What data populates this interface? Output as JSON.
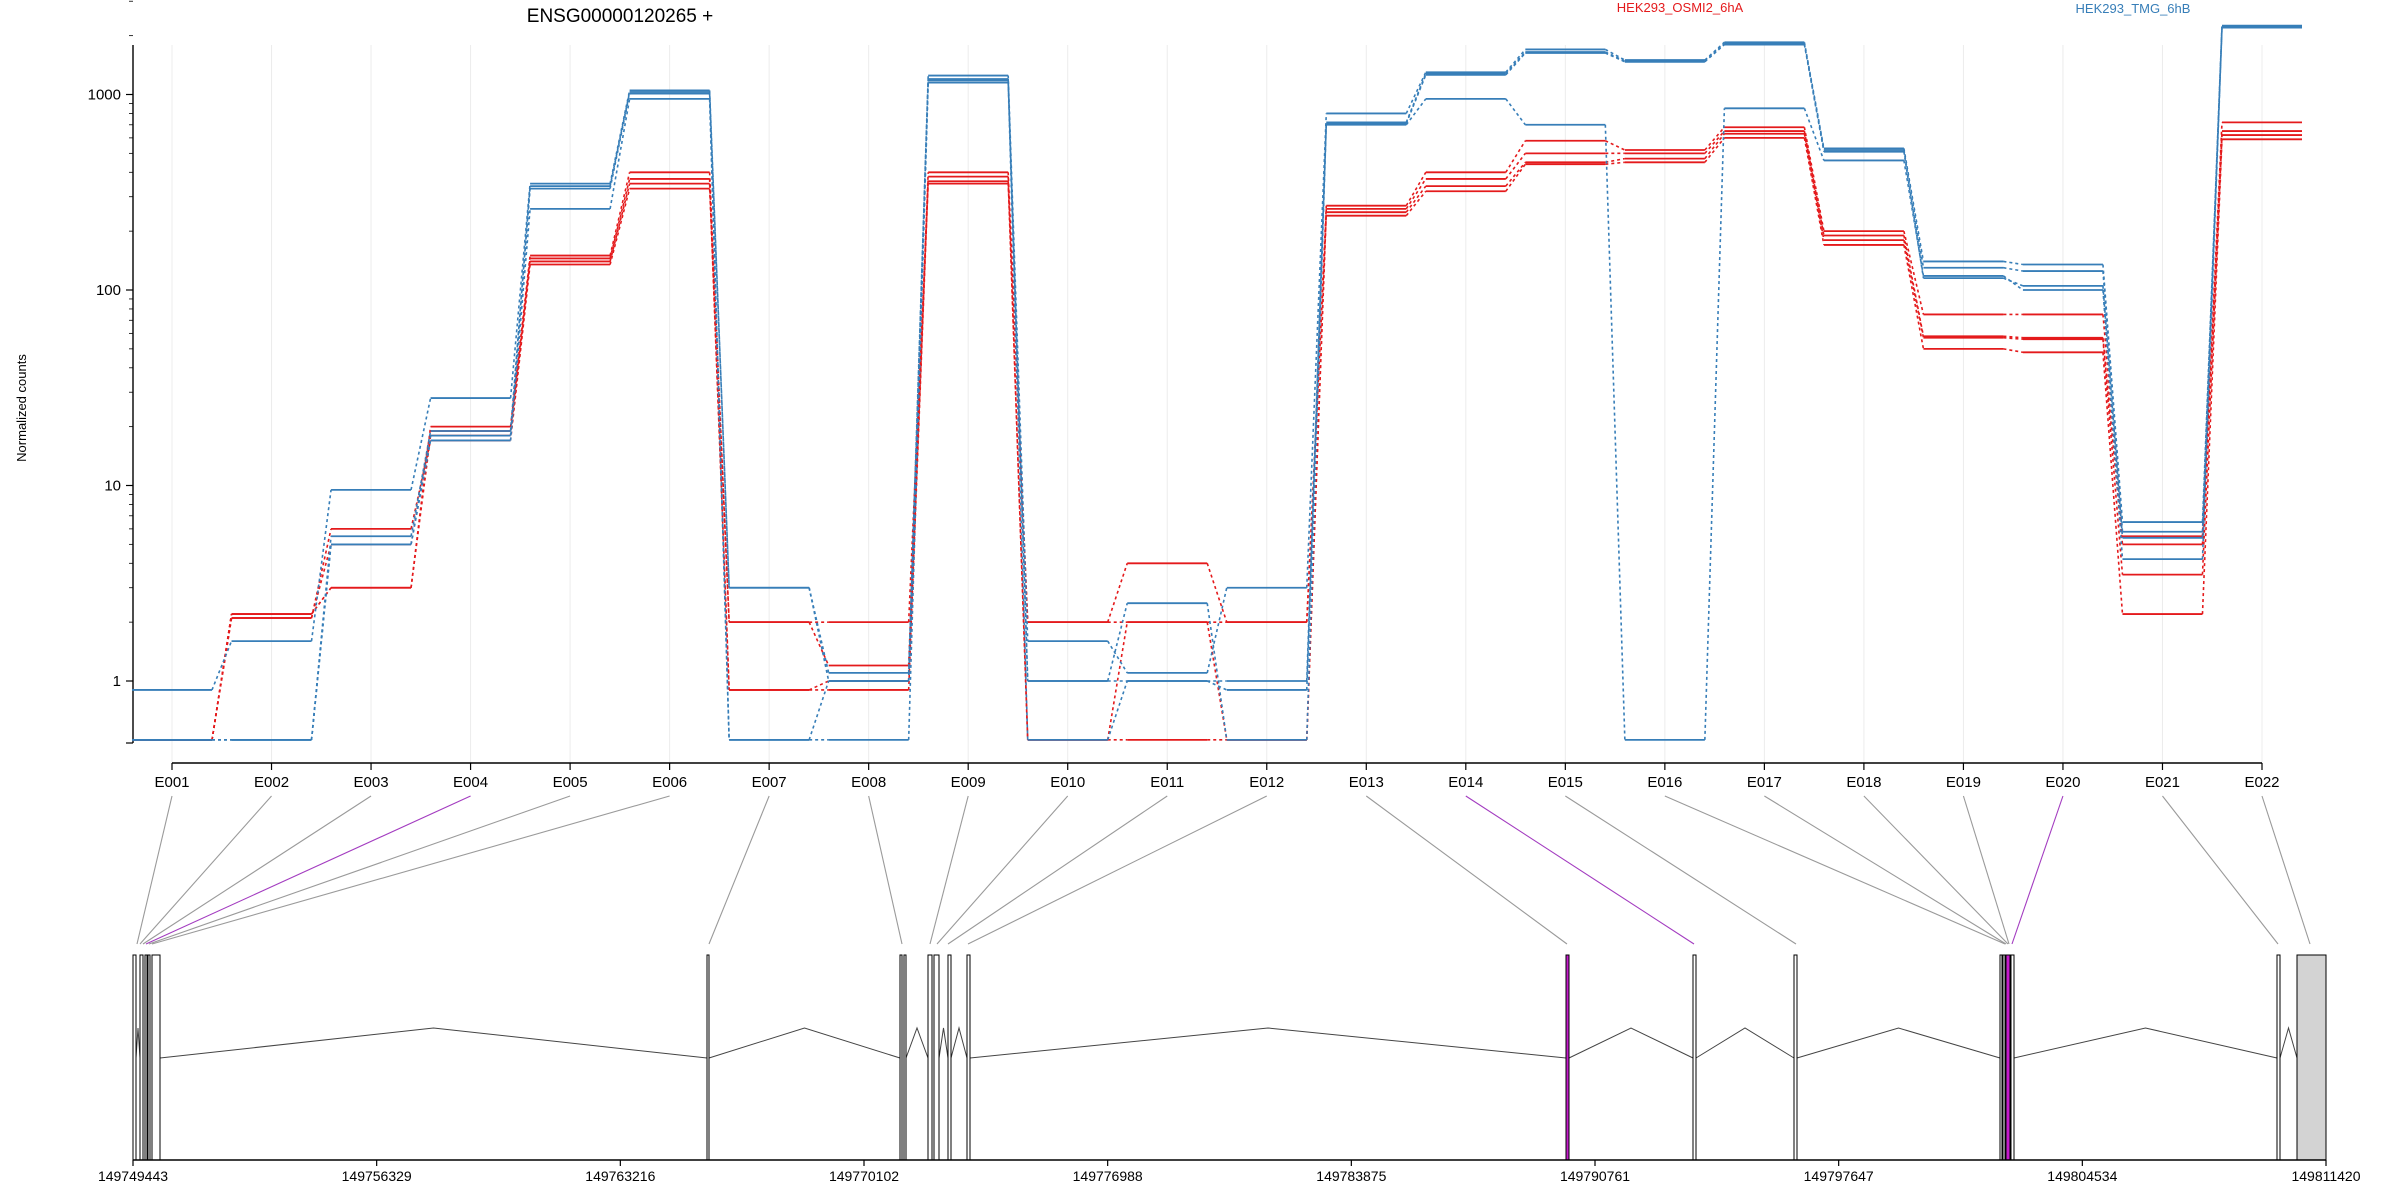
{
  "chart_data": {
    "type": "line",
    "title": "ENSG00000120265 +",
    "ylabel": "Normalized counts",
    "yscale": "log",
    "ylim": [
      0.5,
      3000
    ],
    "yticks": [
      1,
      10,
      100,
      1000
    ],
    "ytick_labels": [
      "1",
      "10",
      "100",
      "1000"
    ],
    "categories": [
      "E001",
      "E002",
      "E003",
      "E004",
      "E005",
      "E006",
      "E007",
      "E008",
      "E009",
      "E010",
      "E011",
      "E012",
      "E013",
      "E014",
      "E015",
      "E016",
      "E017",
      "E018",
      "E019",
      "E020",
      "E021",
      "E022"
    ],
    "highlighted_exons": [
      "E004",
      "E014",
      "E020"
    ],
    "legend": [
      {
        "name": "HEK293_OSMI2_6hA",
        "color": "#e41a1c"
      },
      {
        "name": "HEK293_TMG_6hB",
        "color": "#377eb8"
      }
    ],
    "series": [
      {
        "group": "HEK293_OSMI2_6hA",
        "values": [
          0.5,
          2.2,
          3,
          20,
          150,
          400,
          2,
          1.2,
          400,
          2,
          4,
          2,
          270,
          400,
          580,
          520,
          680,
          200,
          75,
          75,
          5.5,
          720
        ]
      },
      {
        "group": "HEK293_OSMI2_6hA",
        "values": [
          0.5,
          2.1,
          5,
          19,
          145,
          370,
          0.9,
          1.0,
          380,
          0.5,
          2,
          0.5,
          260,
          370,
          500,
          500,
          650,
          190,
          58,
          57,
          5,
          650
        ]
      },
      {
        "group": "HEK293_OSMI2_6hA",
        "values": [
          0.5,
          2.2,
          3,
          18,
          140,
          350,
          0.9,
          0.9,
          360,
          0.5,
          0.5,
          0.5,
          250,
          340,
          450,
          470,
          630,
          180,
          57,
          56,
          3.5,
          620
        ]
      },
      {
        "group": "HEK293_OSMI2_6hA",
        "values": [
          0.5,
          2.1,
          6,
          17,
          135,
          330,
          2,
          2,
          350,
          2,
          2,
          2,
          240,
          320,
          440,
          450,
          600,
          170,
          50,
          48,
          2.2,
          590
        ]
      },
      {
        "group": "HEK293_TMG_6hB",
        "values": [
          0.9,
          1.6,
          9.5,
          28,
          350,
          1050,
          3,
          1.1,
          1250,
          1.6,
          1.1,
          3,
          800,
          1300,
          1700,
          1500,
          1850,
          530,
          140,
          135,
          6.5,
          2250
        ]
      },
      {
        "group": "HEK293_TMG_6hB",
        "values": [
          0.5,
          0.5,
          5.5,
          19,
          340,
          1030,
          0.5,
          1.0,
          1200,
          1.0,
          2.5,
          0.5,
          720,
          1280,
          1650,
          1480,
          1820,
          520,
          130,
          125,
          5.8,
          2230
        ]
      },
      {
        "group": "HEK293_TMG_6hB",
        "values": [
          0.5,
          0.5,
          5,
          18,
          330,
          1010,
          3,
          1.0,
          1180,
          1.0,
          1.0,
          1.0,
          710,
          1260,
          1630,
          1470,
          1800,
          510,
          115,
          105,
          5.4,
          2220
        ]
      },
      {
        "group": "HEK293_TMG_6hB",
        "values": [
          0.5,
          0.5,
          5,
          17,
          260,
          950,
          0.5,
          0.5,
          1150,
          0.5,
          1.0,
          0.9,
          700,
          950,
          700,
          0.5,
          850,
          460,
          118,
          100,
          4.2,
          2200
        ]
      }
    ],
    "genomic_axis": {
      "tick_labels": [
        "149749443",
        "149756329",
        "149763216",
        "149770102",
        "149776988",
        "149783875",
        "149790761",
        "149797647",
        "149804534",
        "149811420"
      ]
    }
  }
}
